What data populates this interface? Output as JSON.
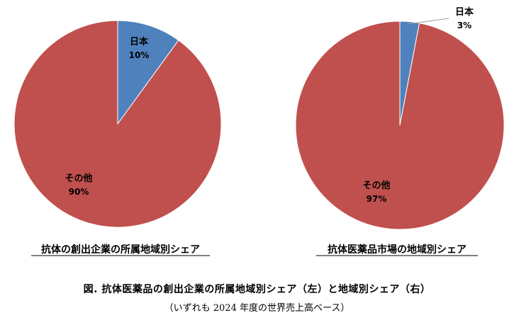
{
  "chart_data": [
    {
      "type": "pie",
      "title": "抗体の創出企業の所属地域別シェア",
      "slices": [
        {
          "name": "日本",
          "percent_label": "10%",
          "value": 10,
          "color": "#4F81BD"
        },
        {
          "name": "その他",
          "percent_label": "90%",
          "value": 90,
          "color": "#C0504D"
        }
      ]
    },
    {
      "type": "pie",
      "title": "抗体医薬品市場の地域別シェア",
      "slices": [
        {
          "name": "日本",
          "percent_label": "3%",
          "value": 3,
          "color": "#4F81BD"
        },
        {
          "name": "その他",
          "percent_label": "97%",
          "value": 97,
          "color": "#C0504D"
        }
      ]
    }
  ],
  "caption": {
    "title": "図. 抗体医薬品の創出企業の所属地域別シェア（左）と地域別シェア（右）",
    "note": "（いずれも 2024 年度の世界売上高ベース）"
  }
}
